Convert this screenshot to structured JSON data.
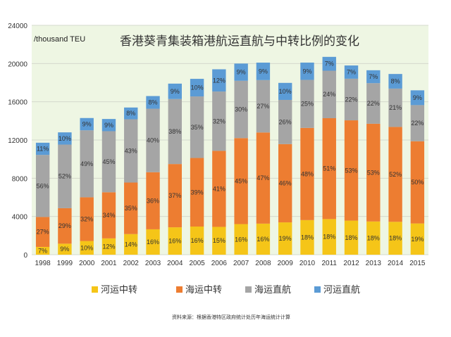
{
  "chart_data": {
    "type": "bar",
    "stacked": true,
    "title": "香港葵青集装箱港航运直航与中转比例的变化",
    "ylabel": "/thousand TEU",
    "xlabel": "",
    "ylim": [
      0,
      24000
    ],
    "yticks": [
      0,
      4000,
      8000,
      12000,
      16000,
      20000,
      24000
    ],
    "ytick_labels": [
      "0",
      "4000",
      "8000",
      "12000",
      "16000",
      "20000",
      "24000"
    ],
    "grid": true,
    "legend_position": "bottom",
    "categories": [
      "1998",
      "1999",
      "2000",
      "2001",
      "2002",
      "2003",
      "2004",
      "2005",
      "2006",
      "2007",
      "2008",
      "2009",
      "2010",
      "2011",
      "2012",
      "2013",
      "2014",
      "2015"
    ],
    "totals": [
      11600,
      12800,
      14300,
      14200,
      15400,
      16600,
      17900,
      18400,
      19400,
      20000,
      20300,
      17800,
      20100,
      20700,
      19800,
      19300,
      19100,
      17200
    ],
    "series": [
      {
        "name": "河运中转",
        "color": "#F5C518",
        "percent_labels": [
          "7%",
          "9%",
          "10%",
          "12%",
          "14%",
          "16%",
          "16%",
          "16%",
          "15%",
          "16%",
          "16%",
          "19%",
          "18%",
          "18%",
          "18%",
          "18%",
          "18%",
          "19%"
        ],
        "percents": [
          7,
          9,
          10,
          12,
          14,
          16,
          16,
          16,
          15,
          16,
          16,
          19,
          18,
          18,
          18,
          18,
          18,
          19
        ]
      },
      {
        "name": "海运中转",
        "color": "#ED7D31",
        "percent_labels": [
          "27%",
          "29%",
          "32%",
          "34%",
          "35%",
          "36%",
          "37%",
          "39%",
          "41%",
          "45%",
          "47%",
          "46%",
          "48%",
          "51%",
          "53%",
          "53%",
          "52%",
          "50%"
        ],
        "percents": [
          27,
          29,
          32,
          34,
          35,
          36,
          37,
          39,
          41,
          45,
          47,
          46,
          48,
          51,
          53,
          53,
          52,
          50
        ]
      },
      {
        "name": "海运直航",
        "color": "#A5A5A5",
        "percent_labels": [
          "56%",
          "52%",
          "49%",
          "45%",
          "43%",
          "40%",
          "38%",
          "35%",
          "32%",
          "30%",
          "27%",
          "26%",
          "25%",
          "24%",
          "22%",
          "22%",
          "21%",
          "22%"
        ],
        "percents": [
          56,
          52,
          49,
          45,
          43,
          40,
          38,
          35,
          32,
          30,
          27,
          26,
          25,
          24,
          22,
          22,
          21,
          22
        ]
      },
      {
        "name": "河运直航",
        "color": "#5B9BD5",
        "percent_labels": [
          "11%",
          "10%",
          "9%",
          "9%",
          "8%",
          "8%",
          "9%",
          "10%",
          "12%",
          "9%",
          "9%",
          "10%",
          "9%",
          "7%",
          "7%",
          "7%",
          "8%",
          "9%"
        ],
        "percents": [
          11,
          10,
          9,
          9,
          8,
          8,
          9,
          10,
          12,
          9,
          9,
          10,
          9,
          7,
          7,
          7,
          8,
          9
        ]
      }
    ],
    "source_note": "资料来源：根据香港特区政府统计处历年海运统计计算"
  }
}
